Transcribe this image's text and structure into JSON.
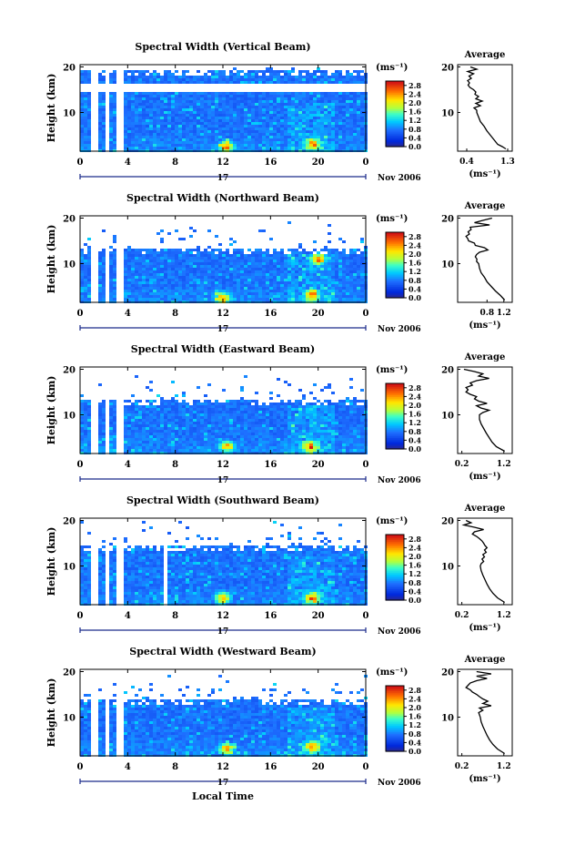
{
  "figure": {
    "xlabel": "Local Time",
    "date_label": "Nov 2006",
    "day_label": "17"
  },
  "chart_data": [
    {
      "type": "heatmap",
      "title": "Spectral Width (Vertical Beam)",
      "ylabel": "Height (km)",
      "xticks": [
        "0",
        "4",
        "8",
        "12",
        "16",
        "20",
        "0"
      ],
      "yticks": [
        "10",
        "20"
      ],
      "colorbar": {
        "unit": "(ms⁻¹)",
        "ticks": [
          "0.0",
          "0.4",
          "0.8",
          "1.2",
          "1.6",
          "2.0",
          "2.4",
          "2.8"
        ],
        "range": [
          0.0,
          3.0
        ]
      },
      "x_range": [
        0,
        24
      ],
      "y_range": [
        1.5,
        20.5
      ],
      "data_gap_heights_km": [
        [
          14.5,
          16.5
        ]
      ],
      "clear_above_km": 19.5,
      "high_width_spots": [
        {
          "time": 12.3,
          "height": 2.5
        },
        {
          "time": 19.5,
          "height": 3.0
        }
      ],
      "missing_time_columns": [
        1.2,
        2.2,
        3.4
      ],
      "average_profile": {
        "title": "Average",
        "xlabel": "(ms⁻¹)",
        "xticks": [
          "0.4",
          "1.3"
        ],
        "yticks": [
          "10",
          "20"
        ],
        "xlim": [
          0.2,
          1.4
        ],
        "ylim": [
          1.5,
          20.5
        ],
        "height": [
          20,
          19.5,
          19,
          18.5,
          18,
          17.5,
          17,
          16.5,
          16,
          15.5,
          15,
          14.5,
          14,
          13.5,
          13,
          12.5,
          12,
          11.5,
          11,
          10.5,
          10,
          9,
          8,
          7,
          6,
          5,
          4,
          3,
          2.5,
          2
        ],
        "value": [
          0.48,
          0.62,
          0.42,
          0.55,
          0.45,
          0.5,
          0.42,
          0.46,
          0.43,
          0.47,
          0.55,
          0.6,
          0.58,
          0.66,
          0.6,
          0.74,
          0.6,
          0.7,
          0.56,
          0.62,
          0.62,
          0.66,
          0.7,
          0.78,
          0.84,
          0.92,
          1.0,
          1.08,
          1.18,
          1.26
        ]
      }
    },
    {
      "type": "heatmap",
      "title": "Spectral Width (Northward Beam)",
      "ylabel": "Height (km)",
      "xticks": [
        "0",
        "4",
        "8",
        "12",
        "16",
        "20",
        "0"
      ],
      "yticks": [
        "10",
        "20"
      ],
      "colorbar": {
        "unit": "(ms⁻¹)",
        "ticks": [
          "0.0",
          "0.4",
          "0.8",
          "1.2",
          "1.6",
          "2.0",
          "2.4",
          "2.8"
        ],
        "range": [
          0.0,
          3.0
        ]
      },
      "x_range": [
        0,
        24
      ],
      "y_range": [
        1.5,
        20.5
      ],
      "clear_above_km": 13.5,
      "high_width_spots": [
        {
          "time": 12.0,
          "height": 2.5
        },
        {
          "time": 19.5,
          "height": 3.0
        },
        {
          "time": 20.0,
          "height": 11.0
        }
      ],
      "missing_time_columns": [
        1.2,
        2.2,
        3.4
      ],
      "average_profile": {
        "title": "Average",
        "xlabel": "(ms⁻¹)",
        "xticks": [
          "0.8",
          "1.2"
        ],
        "yticks": [
          "10",
          "20"
        ],
        "xlim": [
          0.1,
          1.4
        ],
        "ylim": [
          1.5,
          20.5
        ],
        "height": [
          20,
          19.5,
          19,
          18.5,
          18,
          17.5,
          17,
          16.5,
          16,
          15.5,
          15,
          14.5,
          14,
          13.5,
          13,
          12.5,
          12,
          11.5,
          11,
          10.5,
          10,
          9,
          8,
          7,
          6,
          5,
          4,
          3,
          2
        ],
        "value": [
          0.92,
          0.7,
          0.5,
          0.86,
          0.4,
          0.42,
          0.35,
          0.38,
          0.3,
          0.34,
          0.36,
          0.5,
          0.52,
          0.74,
          0.82,
          0.62,
          0.55,
          0.52,
          0.56,
          0.55,
          0.6,
          0.62,
          0.66,
          0.74,
          0.8,
          0.9,
          1.0,
          1.12,
          1.22
        ]
      }
    },
    {
      "type": "heatmap",
      "title": "Spectral Width (Eastward Beam)",
      "ylabel": "Height (km)",
      "xticks": [
        "0",
        "4",
        "8",
        "12",
        "16",
        "20",
        "0"
      ],
      "yticks": [
        "10",
        "20"
      ],
      "colorbar": {
        "unit": "(ms⁻¹)",
        "ticks": [
          "0.0",
          "0.4",
          "0.8",
          "1.2",
          "1.6",
          "2.0",
          "2.4",
          "2.8"
        ],
        "range": [
          0.0,
          3.0
        ]
      },
      "x_range": [
        0,
        24
      ],
      "y_range": [
        1.5,
        20.5
      ],
      "clear_above_km": 13.5,
      "high_width_spots": [
        {
          "time": 12.3,
          "height": 3.0
        },
        {
          "time": 19.3,
          "height": 3.0
        }
      ],
      "missing_time_columns": [
        1.2,
        2.2,
        3.4
      ],
      "average_profile": {
        "title": "Average",
        "xlabel": "(ms⁻¹)",
        "xticks": [
          "0.2",
          "1.2"
        ],
        "yticks": [
          "10",
          "20"
        ],
        "xlim": [
          0.1,
          1.4
        ],
        "ylim": [
          1.5,
          20.5
        ],
        "height": [
          20,
          19.5,
          19,
          18.5,
          18,
          17.5,
          17,
          16.5,
          16,
          15.5,
          15,
          14.5,
          14,
          13.5,
          13,
          12.5,
          12,
          11.5,
          11,
          10.5,
          10,
          9,
          8,
          7,
          6,
          5,
          4,
          3,
          2
        ],
        "value": [
          0.25,
          0.5,
          0.7,
          0.6,
          0.85,
          0.55,
          0.4,
          0.45,
          0.3,
          0.35,
          0.3,
          0.4,
          0.55,
          0.5,
          0.6,
          0.8,
          0.55,
          0.65,
          0.85,
          0.7,
          0.62,
          0.62,
          0.66,
          0.72,
          0.78,
          0.85,
          0.92,
          1.02,
          1.22
        ]
      }
    },
    {
      "type": "heatmap",
      "title": "Spectral Width (Southward Beam)",
      "ylabel": "Height (km)",
      "xticks": [
        "0",
        "4",
        "8",
        "12",
        "16",
        "20",
        "0"
      ],
      "yticks": [
        "10",
        "20"
      ],
      "colorbar": {
        "unit": "(ms⁻¹)",
        "ticks": [
          "0.0",
          "0.4",
          "0.8",
          "1.2",
          "1.6",
          "2.0",
          "2.4",
          "2.8"
        ],
        "range": [
          0.0,
          3.0
        ]
      },
      "x_range": [
        0,
        24
      ],
      "y_range": [
        1.5,
        20.5
      ],
      "clear_above_km": 14.5,
      "high_width_spots": [
        {
          "time": 12.0,
          "height": 3.0
        },
        {
          "time": 19.5,
          "height": 3.0
        }
      ],
      "missing_time_columns": [
        1.2,
        2.2,
        3.4,
        7.2
      ],
      "average_profile": {
        "title": "Average",
        "xlabel": "(ms⁻¹)",
        "xticks": [
          "0.2",
          "1.2"
        ],
        "yticks": [
          "10",
          "20"
        ],
        "xlim": [
          0.1,
          1.4
        ],
        "ylim": [
          1.5,
          20.5
        ],
        "height": [
          20,
          19.5,
          19,
          18.5,
          18,
          17.5,
          17,
          16.5,
          16,
          15.5,
          15,
          14.5,
          14,
          13.5,
          13,
          12.5,
          12,
          11.5,
          11,
          10.5,
          10,
          9,
          8,
          7,
          6,
          5,
          4,
          3,
          2
        ],
        "value": [
          0.3,
          0.42,
          0.25,
          0.5,
          0.72,
          0.5,
          0.45,
          0.55,
          0.62,
          0.68,
          0.72,
          0.75,
          0.8,
          0.74,
          0.78,
          0.7,
          0.74,
          0.68,
          0.72,
          0.66,
          0.64,
          0.66,
          0.7,
          0.75,
          0.8,
          0.86,
          0.94,
          1.05,
          1.22
        ]
      }
    },
    {
      "type": "heatmap",
      "title": "Spectral Width (Westward Beam)",
      "ylabel": "Height (km)",
      "xticks": [
        "0",
        "4",
        "8",
        "12",
        "16",
        "20",
        "0"
      ],
      "yticks": [
        "10",
        "20"
      ],
      "colorbar": {
        "unit": "(ms⁻¹)",
        "ticks": [
          "0.0",
          "0.4",
          "0.8",
          "1.2",
          "1.6",
          "2.0",
          "2.4",
          "2.8"
        ],
        "range": [
          0.0,
          3.0
        ]
      },
      "x_range": [
        0,
        24
      ],
      "y_range": [
        1.5,
        20.5
      ],
      "clear_above_km": 14.0,
      "high_width_spots": [
        {
          "time": 12.3,
          "height": 3.0
        },
        {
          "time": 19.5,
          "height": 3.5
        }
      ],
      "missing_time_columns": [
        1.2,
        2.2,
        3.4
      ],
      "average_profile": {
        "title": "Average",
        "xlabel": "(ms⁻¹)",
        "xticks": [
          "0.2",
          "1.2"
        ],
        "yticks": [
          "10",
          "20"
        ],
        "xlim": [
          0.1,
          1.4
        ],
        "ylim": [
          1.5,
          20.5
        ],
        "height": [
          20,
          19.5,
          19,
          18.5,
          18,
          17.5,
          17,
          16.5,
          16,
          15.5,
          15,
          14.5,
          14,
          13.5,
          13,
          12.5,
          12,
          11.5,
          11,
          10.5,
          10,
          9,
          8,
          7,
          6,
          5,
          4,
          3,
          2
        ],
        "value": [
          0.55,
          0.9,
          0.55,
          0.8,
          0.55,
          0.4,
          0.35,
          0.3,
          0.4,
          0.45,
          0.55,
          0.62,
          0.7,
          0.82,
          0.7,
          0.9,
          0.62,
          0.7,
          0.6,
          0.62,
          0.64,
          0.66,
          0.7,
          0.75,
          0.8,
          0.86,
          0.94,
          1.05,
          1.22
        ]
      }
    }
  ]
}
